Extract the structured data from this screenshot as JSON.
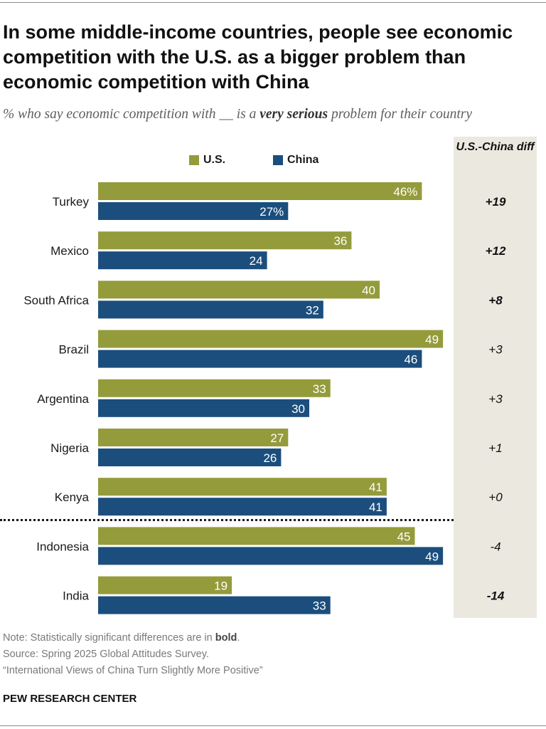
{
  "title": "In some middle-income countries, people see economic competition with the U.S. as a bigger problem than economic competition with China",
  "subtitle": {
    "before": "% who say economic competition with __ is a ",
    "emphasis": "very serious",
    "after": " problem for their country"
  },
  "diff_header": "U.S.-China diff",
  "colors": {
    "us": "#949b3b",
    "china": "#1b4e7d",
    "diff_panel": "#ebe8e0"
  },
  "chart_data": {
    "type": "bar",
    "orientation": "horizontal",
    "categories": [
      "Turkey",
      "Mexico",
      "South Africa",
      "Brazil",
      "Argentina",
      "Nigeria",
      "Kenya",
      "Indonesia",
      "India"
    ],
    "series": [
      {
        "name": "U.S.",
        "values": [
          46,
          36,
          40,
          49,
          33,
          27,
          41,
          45,
          19
        ]
      },
      {
        "name": "China",
        "values": [
          27,
          24,
          32,
          46,
          30,
          26,
          41,
          49,
          33
        ]
      }
    ],
    "value_labels": {
      "U.S.": [
        "46%",
        "36",
        "40",
        "49",
        "33",
        "27",
        "41",
        "45",
        "19"
      ],
      "China": [
        "27%",
        "24",
        "32",
        "46",
        "30",
        "26",
        "41",
        "49",
        "33"
      ]
    },
    "diff": [
      "+19",
      "+12",
      "+8",
      "+3",
      "+3",
      "+1",
      "+0",
      "-4",
      "-14"
    ],
    "diff_significant": [
      true,
      true,
      true,
      false,
      false,
      false,
      false,
      false,
      true
    ],
    "xlim": [
      0,
      50
    ],
    "separator_after": "Kenya"
  },
  "notes": {
    "note_prefix": "Note: Statistically significant differences are in ",
    "note_bold": "bold",
    "note_suffix": ".",
    "source": "Source: Spring 2025 Global Attitudes Survey.",
    "report": "“International Views of China Turn Slightly More Positive”"
  },
  "footer": "PEW RESEARCH CENTER"
}
